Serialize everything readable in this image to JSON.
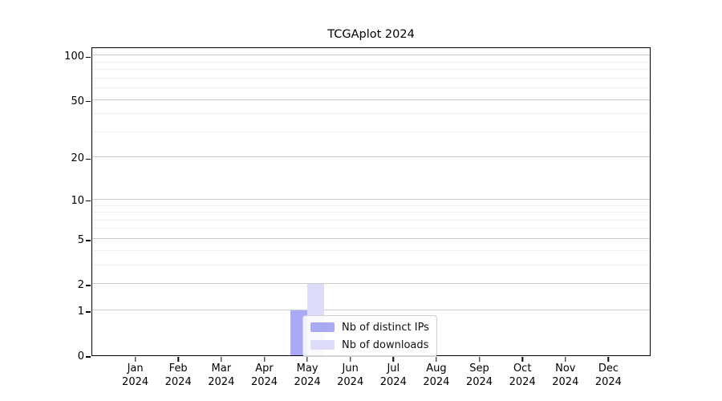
{
  "title": "TCGAplot 2024",
  "chart_data": {
    "type": "bar",
    "title": "TCGAplot 2024",
    "categories": [
      "Jan",
      "Feb",
      "Mar",
      "Apr",
      "May",
      "Jun",
      "Jul",
      "Aug",
      "Sep",
      "Oct",
      "Nov",
      "Dec"
    ],
    "x_year": "2024",
    "series": [
      {
        "name": "Nb of distinct IPs",
        "color": "#a9a9f5",
        "values": [
          0,
          0,
          0,
          0,
          1,
          0,
          0,
          0,
          0,
          0,
          0,
          0
        ]
      },
      {
        "name": "Nb of downloads",
        "color": "#dcdcf8",
        "values": [
          0,
          0,
          0,
          0,
          2,
          0,
          0,
          0,
          0,
          0,
          0,
          0
        ]
      }
    ],
    "y_axis": {
      "scale": "log1p",
      "ticks": [
        0,
        1,
        2,
        5,
        10,
        20,
        50,
        100
      ],
      "minor_ticks": [
        3,
        4,
        6,
        7,
        8,
        9,
        30,
        40,
        60,
        70,
        80,
        90
      ],
      "top_value": 115,
      "ylim": [
        0,
        115
      ]
    },
    "grid": true,
    "legend": {
      "position": "inside lower center",
      "entries": [
        "Nb of distinct IPs",
        "Nb of downloads"
      ]
    },
    "colors": {
      "axis": "#000000",
      "grid_major": "#cccccc",
      "grid_minor": "#efefef",
      "legend_border": "#cfcfcf",
      "background": "#ffffff"
    }
  }
}
